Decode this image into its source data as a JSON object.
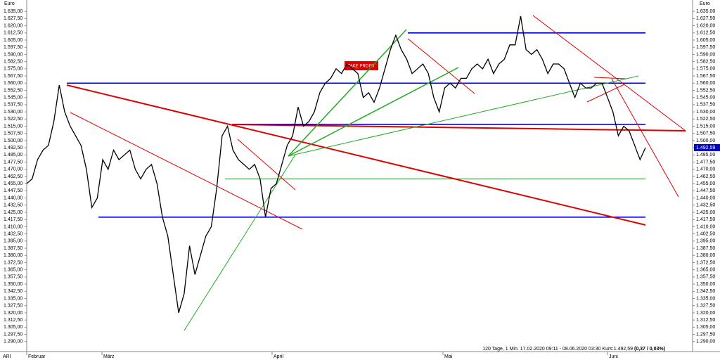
{
  "chart_data": {
    "type": "line",
    "y_unit_label": "Euro",
    "instrument": "ARI",
    "annotation": "TAKE PROFIT",
    "footer": "120 Tage, 1 Min. 17.02.2020 09:11 - 08.06.2020 03:30  Kurs:1.492,59",
    "footer_change": "(0,37 / 0,03%)",
    "month_labels": [
      "Februar",
      "März",
      "April",
      "Mai",
      "Juni"
    ],
    "last_price": {
      "value": 1492.59,
      "label": "1.492,59"
    },
    "ylim": [
      1281,
      1641
    ],
    "yticks": [
      {
        "value": 1635,
        "label": "1.635,00"
      },
      {
        "value": 1627.5,
        "label": "1.627,50"
      },
      {
        "value": 1620,
        "label": "1.620,00"
      },
      {
        "value": 1612.5,
        "label": "1.612,50"
      },
      {
        "value": 1605,
        "label": "1.605,00"
      },
      {
        "value": 1597.5,
        "label": "1.597,50"
      },
      {
        "value": 1590,
        "label": "1.590,00"
      },
      {
        "value": 1582.5,
        "label": "1.582,50"
      },
      {
        "value": 1575,
        "label": "1.575,00"
      },
      {
        "value": 1567.5,
        "label": "1.567,50"
      },
      {
        "value": 1560,
        "label": "1.560,00"
      },
      {
        "value": 1552.5,
        "label": "1.552,50"
      },
      {
        "value": 1545,
        "label": "1.545,00"
      },
      {
        "value": 1537.5,
        "label": "1.537,50"
      },
      {
        "value": 1530,
        "label": "1.530,00"
      },
      {
        "value": 1522.5,
        "label": "1.522,50"
      },
      {
        "value": 1515,
        "label": "1.515,00"
      },
      {
        "value": 1507.5,
        "label": "1.507,50"
      },
      {
        "value": 1500,
        "label": "1.500,00"
      },
      {
        "value": 1492.5,
        "label": "1.492,50"
      },
      {
        "value": 1485,
        "label": "1.485,00"
      },
      {
        "value": 1477.5,
        "label": "1.477,50"
      },
      {
        "value": 1470,
        "label": "1.470,00"
      },
      {
        "value": 1462.5,
        "label": "1.462,50"
      },
      {
        "value": 1455,
        "label": "1.455,00"
      },
      {
        "value": 1447.5,
        "label": "1.447,50"
      },
      {
        "value": 1440,
        "label": "1.440,00"
      },
      {
        "value": 1432.5,
        "label": "1.432,50"
      },
      {
        "value": 1425,
        "label": "1.425,00"
      },
      {
        "value": 1417.5,
        "label": "1.417,50"
      },
      {
        "value": 1410,
        "label": "1.410,00"
      },
      {
        "value": 1402.5,
        "label": "1.402,50"
      },
      {
        "value": 1395,
        "label": "1.395,00"
      },
      {
        "value": 1387.5,
        "label": "1.387,50"
      },
      {
        "value": 1380,
        "label": "1.380,00"
      },
      {
        "value": 1372.5,
        "label": "1.372,50"
      },
      {
        "value": 1365,
        "label": "1.365,00"
      },
      {
        "value": 1357.5,
        "label": "1.357,50"
      },
      {
        "value": 1350,
        "label": "1.350,00"
      },
      {
        "value": 1342.5,
        "label": "1.342,50"
      },
      {
        "value": 1335,
        "label": "1.335,00"
      },
      {
        "value": 1327.5,
        "label": "1.327,50"
      },
      {
        "value": 1320,
        "label": "1.320,00"
      },
      {
        "value": 1312.5,
        "label": "1.312,50"
      },
      {
        "value": 1305,
        "label": "1.305,00"
      },
      {
        "value": 1297.5,
        "label": "1.297,50"
      },
      {
        "value": 1290,
        "label": "1.290,00"
      }
    ],
    "series": [
      {
        "color": "#000000",
        "values": [
          1455,
          1460,
          1480,
          1490,
          1495,
          1520,
          1558,
          1530,
          1515,
          1505,
          1495,
          1470,
          1430,
          1440,
          1480,
          1470,
          1490,
          1480,
          1485,
          1490,
          1470,
          1460,
          1470,
          1475,
          1455,
          1420,
          1400,
          1360,
          1320,
          1340,
          1390,
          1360,
          1380,
          1400,
          1410,
          1450,
          1505,
          1515,
          1490,
          1480,
          1475,
          1470,
          1475,
          1460,
          1420,
          1450,
          1455,
          1475,
          1495,
          1505,
          1535,
          1515,
          1520,
          1530,
          1550,
          1560,
          1565,
          1575,
          1570,
          1580,
          1575,
          1570,
          1545,
          1550,
          1540,
          1555,
          1575,
          1595,
          1610,
          1595,
          1585,
          1570,
          1575,
          1580,
          1570,
          1545,
          1530,
          1555,
          1560,
          1555,
          1565,
          1565,
          1575,
          1580,
          1575,
          1585,
          1570,
          1580,
          1585,
          1600,
          1600,
          1630,
          1595,
          1590,
          1595,
          1585,
          1570,
          1580,
          1580,
          1575,
          1560,
          1545,
          1560,
          1555,
          1555,
          1560,
          1560,
          1545,
          1530,
          1505,
          1515,
          1510,
          1495,
          1480,
          1492.59
        ]
      }
    ],
    "levels": [
      {
        "value": 1612.5,
        "color": "#0000cc"
      },
      {
        "value": 1560,
        "color": "#0000cc"
      },
      {
        "value": 1517,
        "color": "#0000cc"
      },
      {
        "value": 1460,
        "color": "#2e8b2e"
      },
      {
        "value": 1420,
        "color": "#0000cc"
      }
    ]
  }
}
